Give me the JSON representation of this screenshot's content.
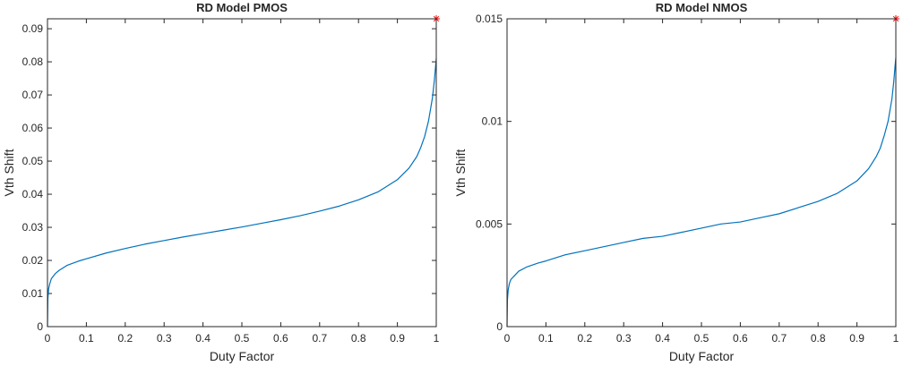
{
  "chart_data": [
    {
      "type": "line",
      "title": "RD Model PMOS",
      "xlabel": "Duty Factor",
      "ylabel": "Vth Shift",
      "xlim": [
        0,
        1
      ],
      "ylim": [
        0,
        0.093
      ],
      "xticks": [
        0,
        0.1,
        0.2,
        0.3,
        0.4,
        0.5,
        0.6,
        0.7,
        0.8,
        0.9,
        1
      ],
      "xtick_labels": [
        "0",
        "0.1",
        "0.2",
        "0.3",
        "0.4",
        "0.5",
        "0.6",
        "0.7",
        "0.8",
        "0.9",
        "1"
      ],
      "yticks": [
        0,
        0.01,
        0.02,
        0.03,
        0.04,
        0.05,
        0.06,
        0.07,
        0.08,
        0.09
      ],
      "ytick_labels": [
        "0",
        "0.01",
        "0.02",
        "0.03",
        "0.04",
        "0.05",
        "0.06",
        "0.07",
        "0.08",
        "0.09"
      ],
      "grid": false,
      "series": [
        {
          "color": "#0072bd",
          "x": [
            0,
            0.001,
            0.003,
            0.006,
            0.01,
            0.02,
            0.03,
            0.05,
            0.08,
            0.1,
            0.15,
            0.2,
            0.25,
            0.3,
            0.35,
            0.4,
            0.45,
            0.5,
            0.55,
            0.6,
            0.65,
            0.7,
            0.75,
            0.8,
            0.85,
            0.9,
            0.93,
            0.95,
            0.96,
            0.97,
            0.98,
            0.99,
            0.995,
            0.998,
            1
          ],
          "y": [
            0,
            0.0085,
            0.0115,
            0.013,
            0.0145,
            0.016,
            0.017,
            0.0185,
            0.0198,
            0.0205,
            0.0222,
            0.0236,
            0.0249,
            0.026,
            0.0271,
            0.0281,
            0.0291,
            0.0301,
            0.0312,
            0.0323,
            0.0335,
            0.0349,
            0.0364,
            0.0383,
            0.0407,
            0.0444,
            0.0479,
            0.0514,
            0.0541,
            0.0574,
            0.0621,
            0.069,
            0.0743,
            0.0783,
            0.081
          ]
        }
      ],
      "marker": {
        "x": 1,
        "y": 0.093,
        "symbol": "*",
        "color": "#ff0000"
      }
    },
    {
      "type": "line",
      "title": "RD Model NMOS",
      "xlabel": "Duty Factor",
      "ylabel": "Vth Shift",
      "xlim": [
        0,
        1
      ],
      "ylim": [
        0,
        0.015
      ],
      "xticks": [
        0,
        0.1,
        0.2,
        0.3,
        0.4,
        0.5,
        0.6,
        0.7,
        0.8,
        0.9,
        1
      ],
      "xtick_labels": [
        "0",
        "0.1",
        "0.2",
        "0.3",
        "0.4",
        "0.5",
        "0.6",
        "0.7",
        "0.8",
        "0.9",
        "1"
      ],
      "yticks": [
        0,
        0.005,
        0.01,
        0.015
      ],
      "ytick_labels": [
        "0",
        "0.005",
        "0.01",
        "0.015"
      ],
      "grid": false,
      "series": [
        {
          "color": "#0072bd",
          "x": [
            0,
            0.001,
            0.003,
            0.006,
            0.01,
            0.02,
            0.03,
            0.05,
            0.08,
            0.1,
            0.15,
            0.2,
            0.25,
            0.3,
            0.35,
            0.4,
            0.45,
            0.5,
            0.55,
            0.6,
            0.65,
            0.7,
            0.75,
            0.8,
            0.85,
            0.9,
            0.93,
            0.95,
            0.96,
            0.97,
            0.98,
            0.99,
            0.995,
            0.998,
            1
          ],
          "y": [
            0,
            0.0013,
            0.0018,
            0.0021,
            0.0023,
            0.0025,
            0.0027,
            0.0029,
            0.0031,
            0.0032,
            0.0035,
            0.0037,
            0.0039,
            0.0041,
            0.0043,
            0.0044,
            0.0046,
            0.0048,
            0.005,
            0.0051,
            0.0053,
            0.0055,
            0.0058,
            0.0061,
            0.0065,
            0.0071,
            0.0077,
            0.0083,
            0.0087,
            0.0093,
            0.01,
            0.0111,
            0.012,
            0.0127,
            0.0131
          ]
        }
      ],
      "marker": {
        "x": 1,
        "y": 0.015,
        "symbol": "*",
        "color": "#ff0000"
      }
    }
  ]
}
